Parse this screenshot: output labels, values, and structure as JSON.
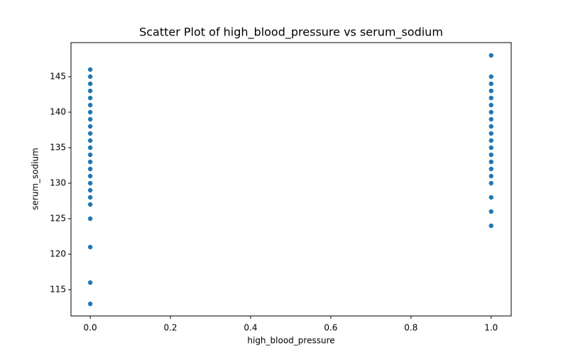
{
  "chart_data": {
    "type": "scatter",
    "title": "Scatter Plot of high_blood_pressure vs serum_sodium",
    "x_label": "high_blood_pressure",
    "y_label": "serum_sodium",
    "series": [
      {
        "color": "#1f77b4",
        "x": [
          0,
          0,
          0,
          0,
          0,
          0,
          0,
          0,
          0,
          0,
          0,
          0,
          0,
          0,
          0,
          0,
          0,
          0,
          0,
          0,
          0,
          0,
          0,
          0,
          1,
          1,
          1,
          1,
          1,
          1,
          1,
          1,
          1,
          1,
          1,
          1,
          1,
          1,
          1,
          1,
          1,
          1,
          1,
          1
        ],
        "values": [
          113,
          116,
          121,
          125,
          127,
          128,
          129,
          130,
          131,
          132,
          133,
          134,
          135,
          136,
          137,
          138,
          139,
          140,
          141,
          142,
          143,
          144,
          145,
          146,
          124,
          126,
          128,
          130,
          131,
          132,
          133,
          134,
          135,
          136,
          137,
          138,
          139,
          140,
          141,
          142,
          143,
          144,
          145,
          148
        ]
      }
    ],
    "xlim": [
      -0.048,
      1.05
    ],
    "xticks": [
      {
        "value": 0,
        "label": "0.0"
      },
      0.2,
      0.4,
      0.6,
      0.8,
      {
        "value": 1,
        "label": "1.0"
      }
    ],
    "ylim": [
      111.3,
      149.8
    ],
    "yticks": [
      115,
      120,
      125,
      130,
      135,
      140,
      145
    ]
  }
}
